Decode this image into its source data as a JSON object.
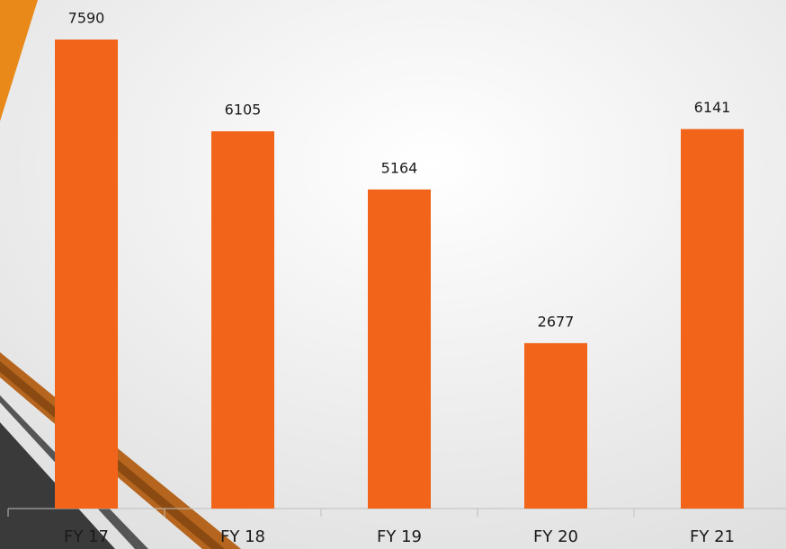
{
  "chart_data": {
    "type": "bar",
    "categories": [
      "FY 17",
      "FY 18",
      "FY 19",
      "FY 20",
      "FY 21"
    ],
    "values": [
      7590,
      6105,
      5164,
      2677,
      6141
    ],
    "color": "#f26419"
  }
}
